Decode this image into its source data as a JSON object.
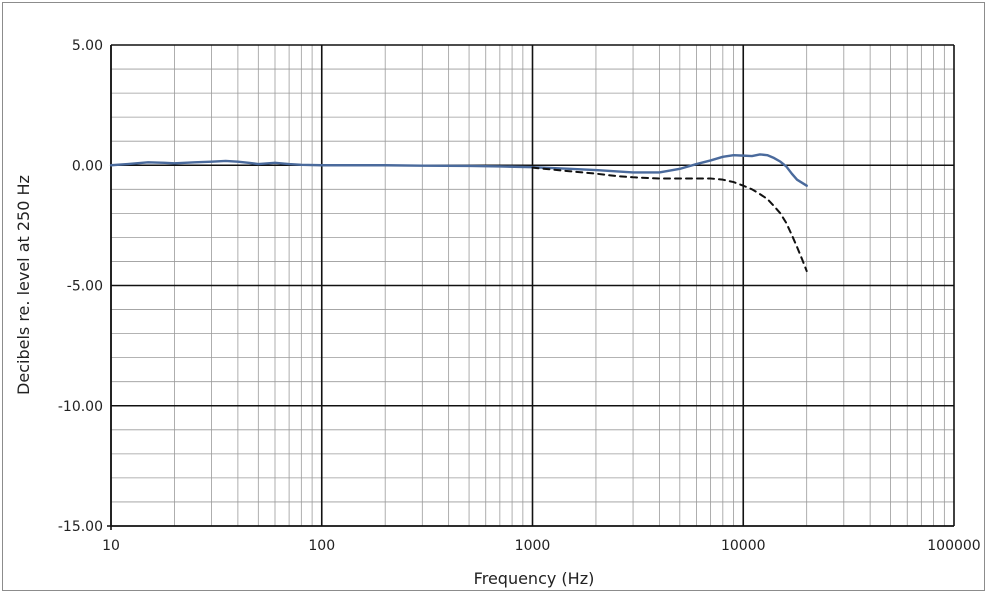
{
  "chart_data": {
    "type": "line",
    "title": "",
    "xlabel": "Frequency (Hz)",
    "ylabel": "Decibels re. level at 250 Hz",
    "x_scale": "log",
    "xlim": [
      10,
      100000
    ],
    "ylim": [
      -15,
      5
    ],
    "x_ticks": [
      "10",
      "100",
      "1000",
      "10000",
      "100000"
    ],
    "y_ticks": [
      "5.00",
      "0.00",
      "-5.00",
      "-10.00",
      "-15.00"
    ],
    "grid": true,
    "legend": "none",
    "series": [
      {
        "style": "solid",
        "color": "#4a6a9c",
        "x": [
          10,
          12,
          15,
          18,
          20,
          25,
          30,
          35,
          40,
          45,
          50,
          60,
          70,
          80,
          100,
          150,
          200,
          300,
          500,
          700,
          1000,
          1500,
          2000,
          3000,
          4000,
          5000,
          6000,
          7000,
          8000,
          9000,
          10000,
          11000,
          12000,
          13000,
          14000,
          15000,
          16000,
          17000,
          18000,
          20000
        ],
        "y": [
          0.0,
          0.05,
          0.12,
          0.1,
          0.08,
          0.12,
          0.15,
          0.18,
          0.15,
          0.1,
          0.05,
          0.1,
          0.05,
          0.02,
          0.0,
          0.0,
          0.0,
          -0.02,
          -0.03,
          -0.05,
          -0.08,
          -0.15,
          -0.2,
          -0.3,
          -0.3,
          -0.15,
          0.05,
          0.2,
          0.35,
          0.42,
          0.4,
          0.38,
          0.45,
          0.42,
          0.3,
          0.15,
          -0.05,
          -0.35,
          -0.6,
          -0.85
        ]
      },
      {
        "style": "dashed",
        "color": "#111111",
        "x": [
          1000,
          1500,
          2000,
          2500,
          3000,
          4000,
          5000,
          6000,
          7000,
          8000,
          9000,
          10000,
          11000,
          12000,
          13000,
          14000,
          15000,
          16000,
          17000,
          18000,
          19000,
          20000
        ],
        "y": [
          -0.1,
          -0.25,
          -0.35,
          -0.45,
          -0.5,
          -0.55,
          -0.55,
          -0.55,
          -0.55,
          -0.6,
          -0.7,
          -0.85,
          -1.0,
          -1.2,
          -1.4,
          -1.7,
          -2.0,
          -2.4,
          -2.9,
          -3.4,
          -3.9,
          -4.4
        ]
      }
    ]
  }
}
